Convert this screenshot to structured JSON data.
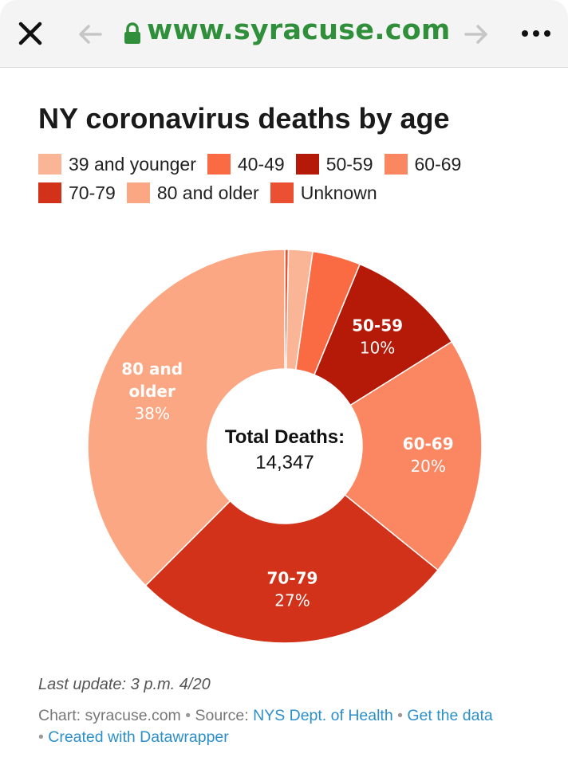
{
  "browser": {
    "url": "www.syracuse.com",
    "icons": {
      "close": "close-icon",
      "back": "arrow-left-icon",
      "forward": "arrow-right-icon",
      "lock": "lock-icon",
      "more": "more-icon"
    },
    "url_color": "#2f8f3a"
  },
  "footer": {
    "last_update": "Last update: 3 p.m. 4/20",
    "chart_prefix": "Chart: syracuse.com",
    "source_prefix": "Source:",
    "source_link": "NYS Dept. of Health",
    "get_data": "Get the data",
    "created_with": "Created with Datawrapper",
    "separator": "•"
  },
  "chart_data": {
    "type": "pie",
    "donut": true,
    "title": "NY coronavirus deaths by age",
    "center_label": "Total Deaths:",
    "center_value": "14,347",
    "legend_position": "top",
    "categories": [
      "39 and younger",
      "40-49",
      "50-59",
      "60-69",
      "70-79",
      "80 and older",
      "Unknown"
    ],
    "values": [
      2,
      4,
      10,
      20,
      27,
      38,
      0.3
    ],
    "value_labels": [
      "",
      "",
      "10%",
      "20%",
      "27%",
      "38%",
      ""
    ],
    "slice_labels": [
      "",
      "",
      "50-59",
      "60-69",
      "70-79",
      "80 and\nolder",
      ""
    ],
    "colors": [
      "#f9b596",
      "#fa6a43",
      "#b51907",
      "#fb8662",
      "#d2321a",
      "#fca783",
      "#ec5033"
    ],
    "slice_order": [
      6,
      0,
      1,
      2,
      3,
      4,
      5
    ]
  }
}
